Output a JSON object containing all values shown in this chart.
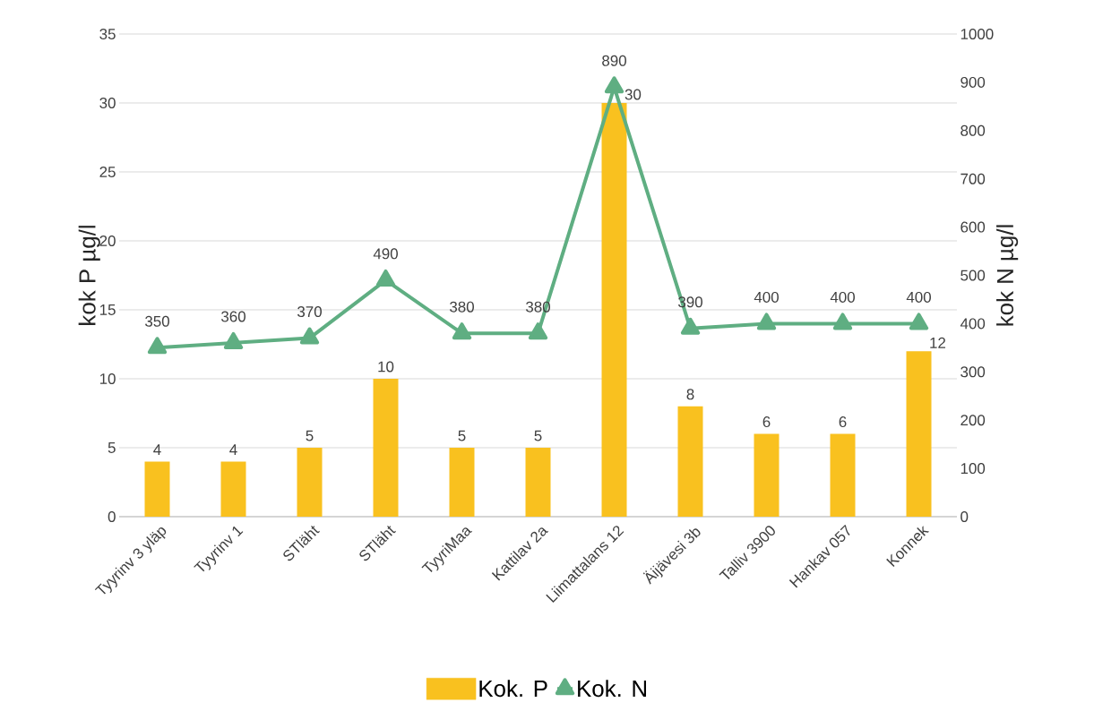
{
  "chart_data": {
    "type": "bar",
    "categories": [
      "Tyyrinv 3 yläp",
      "Tyyrinv 1",
      "STläht",
      "STläht",
      "TyyriMaa",
      "Kattilav 2a",
      "Liimattalans 12",
      "Äijävesi 3b",
      "Talliv 3900",
      "Hankav 057",
      "Konnek"
    ],
    "series": [
      {
        "name": "Kok. P",
        "color": "#f9c11f",
        "values": [
          4,
          4,
          5,
          10,
          5,
          5,
          30,
          8,
          6,
          6,
          12
        ]
      },
      {
        "name": "Kok. N",
        "type": "line",
        "axis": "y2",
        "color": "#5fae82",
        "marker": "triangle",
        "values": [
          350,
          360,
          370,
          490,
          380,
          380,
          890,
          390,
          400,
          400,
          400
        ]
      }
    ],
    "ylabel": "kok P µg/l",
    "y2label": "kok N µg/l",
    "ylim": [
      0,
      35
    ],
    "yticks": [
      0,
      5,
      10,
      15,
      20,
      25,
      30,
      35
    ],
    "y2lim": [
      0,
      1000
    ],
    "y2ticks": [
      0,
      100,
      200,
      300,
      400,
      500,
      600,
      700,
      800,
      900,
      1000
    ],
    "grid": "y",
    "legend": "bottom",
    "data_labels": true
  }
}
